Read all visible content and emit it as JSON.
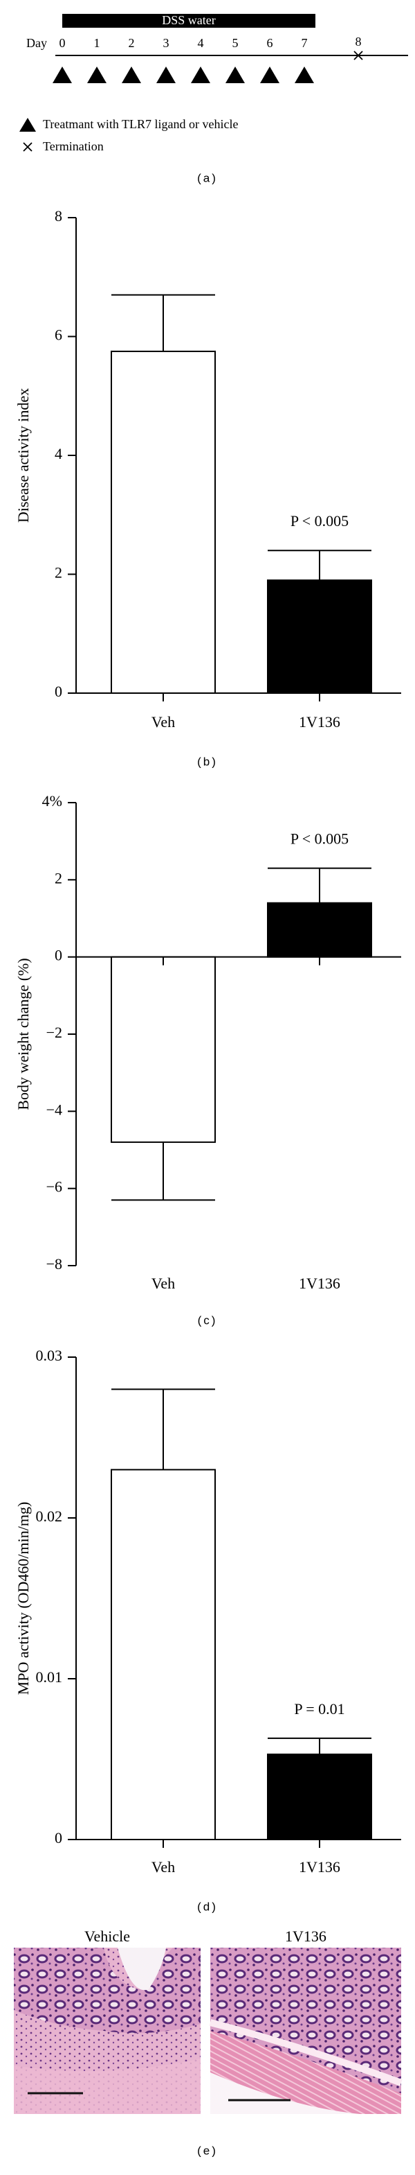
{
  "timeline": {
    "bar_label": "DSS water",
    "day_label": "Day",
    "days": [
      0,
      1,
      2,
      3,
      4,
      5,
      6,
      7
    ],
    "termination_day": 8,
    "legend": [
      "Treatmant with TLR7 ligand or vehicle",
      "Termination"
    ],
    "panel_label": "(a)"
  },
  "chart_data": [
    {
      "type": "bar",
      "y_label": "Disease activity index",
      "categories": [
        "Veh",
        "1V136"
      ],
      "values": [
        5.75,
        1.9
      ],
      "errors": [
        0.95,
        0.5
      ],
      "colors": [
        "#ffffff",
        "#000000"
      ],
      "ylim": [
        0,
        8
      ],
      "yticks": [
        0,
        2,
        4,
        6,
        8
      ],
      "annotation": "P < 0.005",
      "panel_label": "(b)"
    },
    {
      "type": "bar",
      "y_label": "Body weight change (%)",
      "categories": [
        "Veh",
        "1V136"
      ],
      "values": [
        -4.8,
        1.4
      ],
      "errors": [
        1.5,
        0.9
      ],
      "colors": [
        "#ffffff",
        "#000000"
      ],
      "ylim": [
        -8,
        4
      ],
      "yticks": [
        {
          "value": -8,
          "label": "−8"
        },
        {
          "value": -6,
          "label": "−6"
        },
        {
          "value": -4,
          "label": "−4"
        },
        {
          "value": -2,
          "label": "−2"
        },
        0,
        2,
        {
          "value": 4,
          "label": "4%"
        }
      ],
      "annotation": "P < 0.005",
      "panel_label": "(c)"
    },
    {
      "type": "bar",
      "y_label": "MPO activity (OD460/min/mg)",
      "categories": [
        "Veh",
        "1V136"
      ],
      "values": [
        0.023,
        0.0053
      ],
      "errors": [
        0.005,
        0.001
      ],
      "colors": [
        "#ffffff",
        "#000000"
      ],
      "ylim": [
        0,
        0.03
      ],
      "yticks": [
        0,
        0.01,
        0.02,
        0.03
      ],
      "annotation": "P = 0.01",
      "panel_label": "(d)"
    }
  ],
  "micrographs": {
    "captions": [
      "Vehicle",
      "1V136"
    ],
    "panel_label": "(e)"
  }
}
